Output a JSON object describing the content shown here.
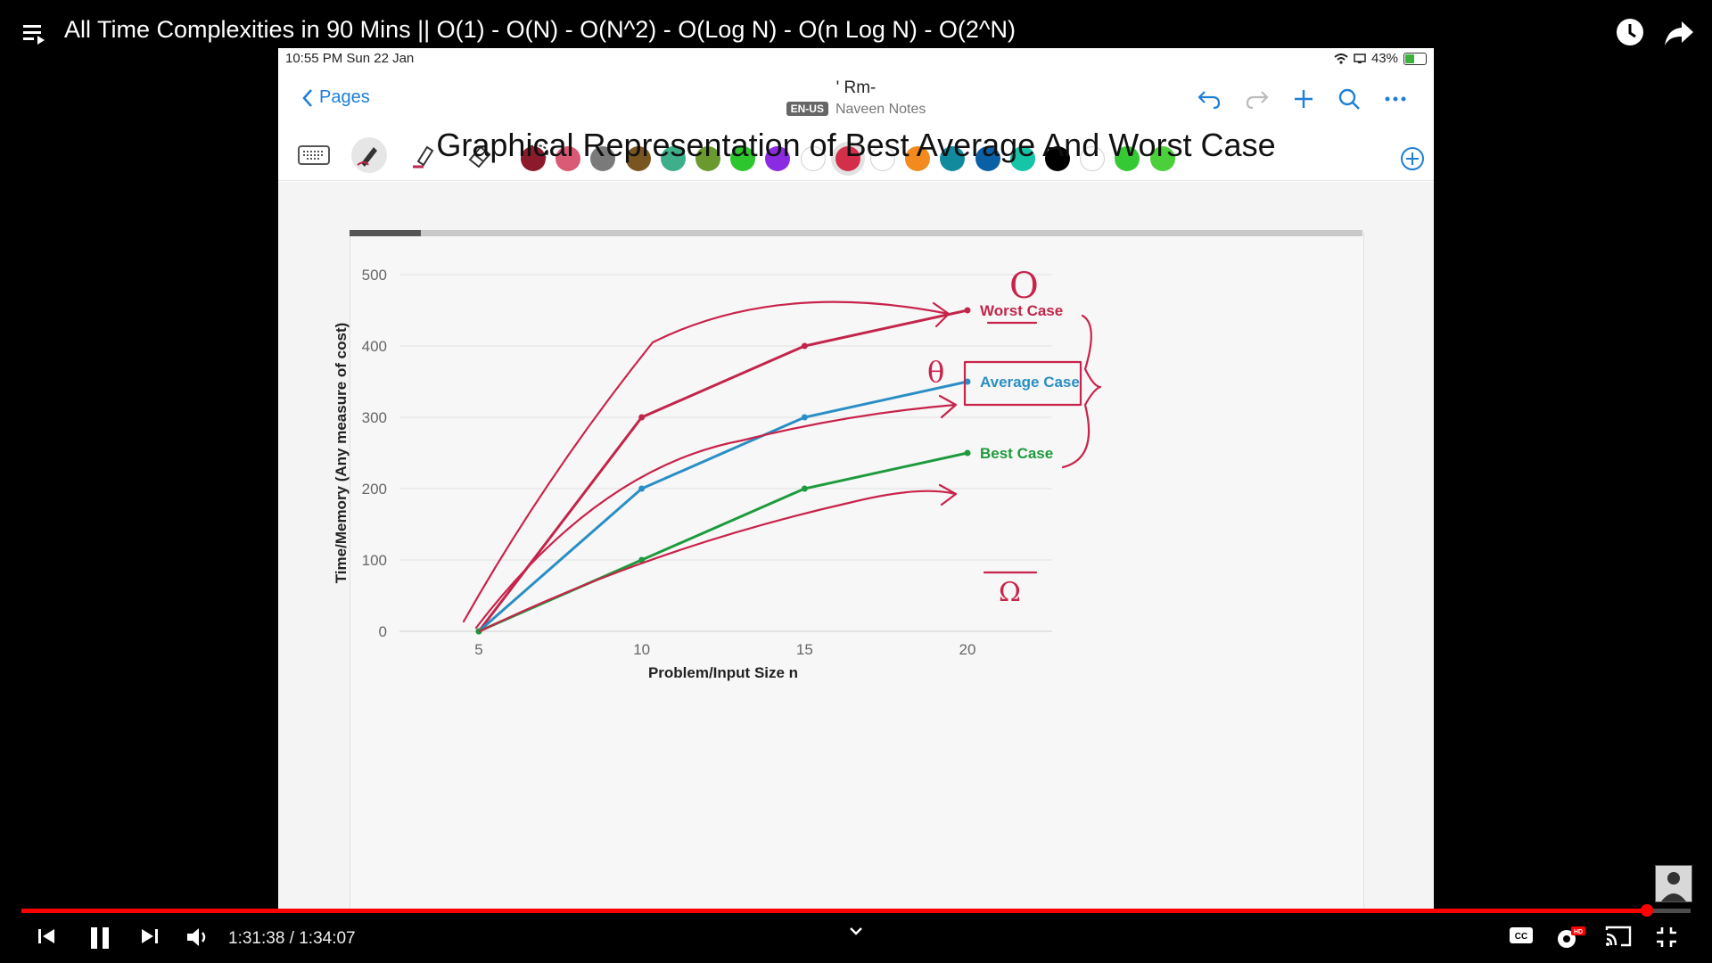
{
  "video": {
    "title": "All Time Complexities in 90 Mins || O(1) - O(N) - O(N^2) - O(Log N) - O(n Log N) - O(2^N)",
    "time_current": "1:31:38",
    "time_total": "1:34:07",
    "time_display": "1:31:38 / 1:34:07",
    "progress": 0.974
  },
  "ipad": {
    "status_time": "10:55 PM   Sun 22 Jan",
    "battery": "43%",
    "back_label": "Pages",
    "doc_title": "' Rm-",
    "lang_badge": "EN-US",
    "notebook": "Naveen Notes",
    "palette": [
      "#8b1a2b",
      "#d95a75",
      "#7a7a7a",
      "#7a5520",
      "#3fae8a",
      "#6a9a2e",
      "#2ec62e",
      "#8a2be2",
      "#ffffff",
      "#d32f4a",
      "#ffffff",
      "#f28a1e",
      "#128a9e",
      "#0b5fa5",
      "#16c4a8",
      "#000000",
      "#ffffff",
      "#36c936",
      "#4bcf3a"
    ],
    "selected_swatch": 9
  },
  "chart_data": {
    "type": "line",
    "title": "Graphical Representation of Best Average And Worst Case",
    "xlabel": "Problem/Input Size n",
    "ylabel": "Time/Memory (Any measure of cost)",
    "x": [
      5,
      10,
      15,
      20
    ],
    "xlim": [
      5,
      20
    ],
    "ylim": [
      0,
      500
    ],
    "xticks": [
      "5",
      "10",
      "15",
      "20"
    ],
    "yticks": [
      "0",
      "100",
      "200",
      "300",
      "400",
      "500"
    ],
    "grid": true,
    "series": [
      {
        "name": "Worst Case",
        "values": [
          0,
          300,
          400,
          450
        ],
        "color": "#c2254a"
      },
      {
        "name": "Average Case",
        "values": [
          0,
          200,
          300,
          350
        ],
        "color": "#2a8ec4"
      },
      {
        "name": "Best Case",
        "values": [
          0,
          100,
          200,
          250
        ],
        "color": "#1e9a3e"
      }
    ],
    "annotations": [
      "O",
      "θ",
      "Ω"
    ]
  }
}
